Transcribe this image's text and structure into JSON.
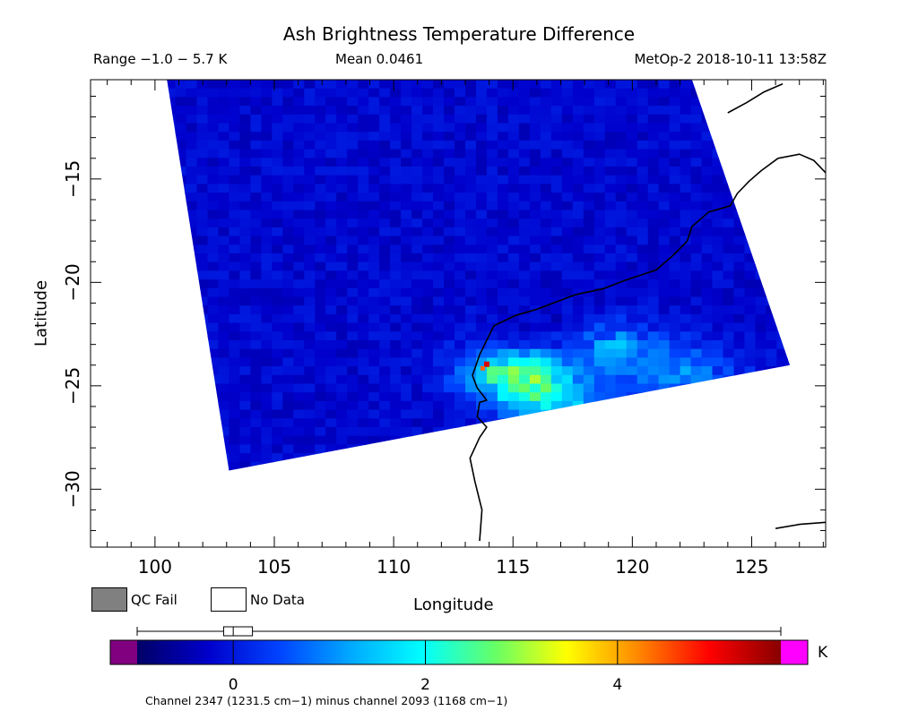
{
  "header": {
    "title": "Ash Brightness Temperature Difference",
    "range": "Range −1.0 − 5.7 K",
    "mean": "Mean 0.0461",
    "satellite": "MetOp-2 2018-10-11 13:58Z"
  },
  "legend": {
    "qc_fail": "QC Fail",
    "no_data": "No Data"
  },
  "colorbar": {
    "unit": "K",
    "range": [
      -1.0,
      5.7
    ],
    "ticks": [
      "0",
      "2",
      "4"
    ],
    "tick_values": [
      0,
      2,
      4
    ],
    "box_stats": {
      "whisker_low": -1.0,
      "q1": -0.1,
      "median": 0.0,
      "q3": 0.2,
      "whisker_high": 5.7
    },
    "under_color": "#800080",
    "over_color": "#ff00ff",
    "colormap": [
      "#000066",
      "#0000cc",
      "#0044ff",
      "#00aaff",
      "#00ffff",
      "#66ff66",
      "#ffff00",
      "#ff8800",
      "#ff0000",
      "#880000"
    ]
  },
  "footer": {
    "channel_note": "Channel 2347 (1231.5 cm−1) minus channel 2093 (1168 cm−1)"
  },
  "chart_data": {
    "type": "heatmap",
    "title": "Ash Brightness Temperature Difference",
    "xlabel": "Longitude",
    "ylabel": "Latitude",
    "xlim": [
      97.3,
      128.1
    ],
    "ylim": [
      -32.8,
      -10.2
    ],
    "x_ticks": [
      100,
      105,
      110,
      115,
      120,
      125
    ],
    "x_tick_labels": [
      "100",
      "105",
      "110",
      "115",
      "120",
      "125"
    ],
    "y_ticks": [
      -15,
      -20,
      -25,
      -30
    ],
    "y_tick_labels": [
      "−15",
      "−20",
      "−25",
      "−30"
    ],
    "value_unit": "K",
    "value_range": [
      -1.0,
      5.7
    ],
    "swath_corners_lonlat": [
      [
        100.5,
        -10.2
      ],
      [
        122.5,
        -10.2
      ],
      [
        126.6,
        -24.0
      ],
      [
        103.1,
        -29.1
      ]
    ],
    "background_value": -0.2,
    "anomalies": [
      {
        "lon": 119.0,
        "lat": -23.0,
        "value": 1.2
      },
      {
        "lon": 115.5,
        "lat": -24.7,
        "value": 1.7
      },
      {
        "lon": 114.6,
        "lat": -24.0,
        "value": 1.4
      },
      {
        "lon": 117.0,
        "lat": -26.0,
        "value": 1.2
      },
      {
        "lon": 122.0,
        "lat": -24.2,
        "value": 1.0
      },
      {
        "lon": 116.5,
        "lat": -22.7,
        "value": -0.6
      }
    ],
    "hotspot": {
      "lon": 113.9,
      "lat": -24.0,
      "value": 5.2
    },
    "coastlines": [
      [
        [
          113.6,
          -32.5
        ],
        [
          113.7,
          -31.0
        ],
        [
          113.4,
          -29.6
        ],
        [
          113.2,
          -28.5
        ],
        [
          113.6,
          -27.5
        ],
        [
          113.9,
          -27.0
        ],
        [
          113.5,
          -26.5
        ],
        [
          113.6,
          -25.8
        ],
        [
          113.9,
          -25.7
        ],
        [
          113.5,
          -25.1
        ],
        [
          113.3,
          -24.5
        ],
        [
          113.6,
          -23.5
        ],
        [
          113.9,
          -22.8
        ],
        [
          114.2,
          -22.1
        ],
        [
          115.1,
          -21.6
        ],
        [
          116.0,
          -21.3
        ],
        [
          117.6,
          -20.6
        ],
        [
          118.8,
          -20.3
        ],
        [
          119.7,
          -19.9
        ],
        [
          121.0,
          -19.4
        ],
        [
          121.7,
          -18.7
        ],
        [
          122.3,
          -18.0
        ],
        [
          122.5,
          -17.3
        ],
        [
          123.2,
          -16.6
        ],
        [
          124.1,
          -16.3
        ],
        [
          124.4,
          -15.7
        ],
        [
          124.9,
          -15.1
        ],
        [
          125.4,
          -14.6
        ],
        [
          126.1,
          -14.0
        ],
        [
          127.0,
          -13.8
        ],
        [
          127.6,
          -14.1
        ],
        [
          128.1,
          -14.7
        ]
      ],
      [
        [
          124.0,
          -11.8
        ],
        [
          124.8,
          -11.3
        ],
        [
          125.5,
          -10.8
        ],
        [
          126.3,
          -10.4
        ]
      ],
      [
        [
          126.0,
          -31.9
        ],
        [
          127.0,
          -31.7
        ],
        [
          128.1,
          -31.6
        ]
      ]
    ]
  }
}
